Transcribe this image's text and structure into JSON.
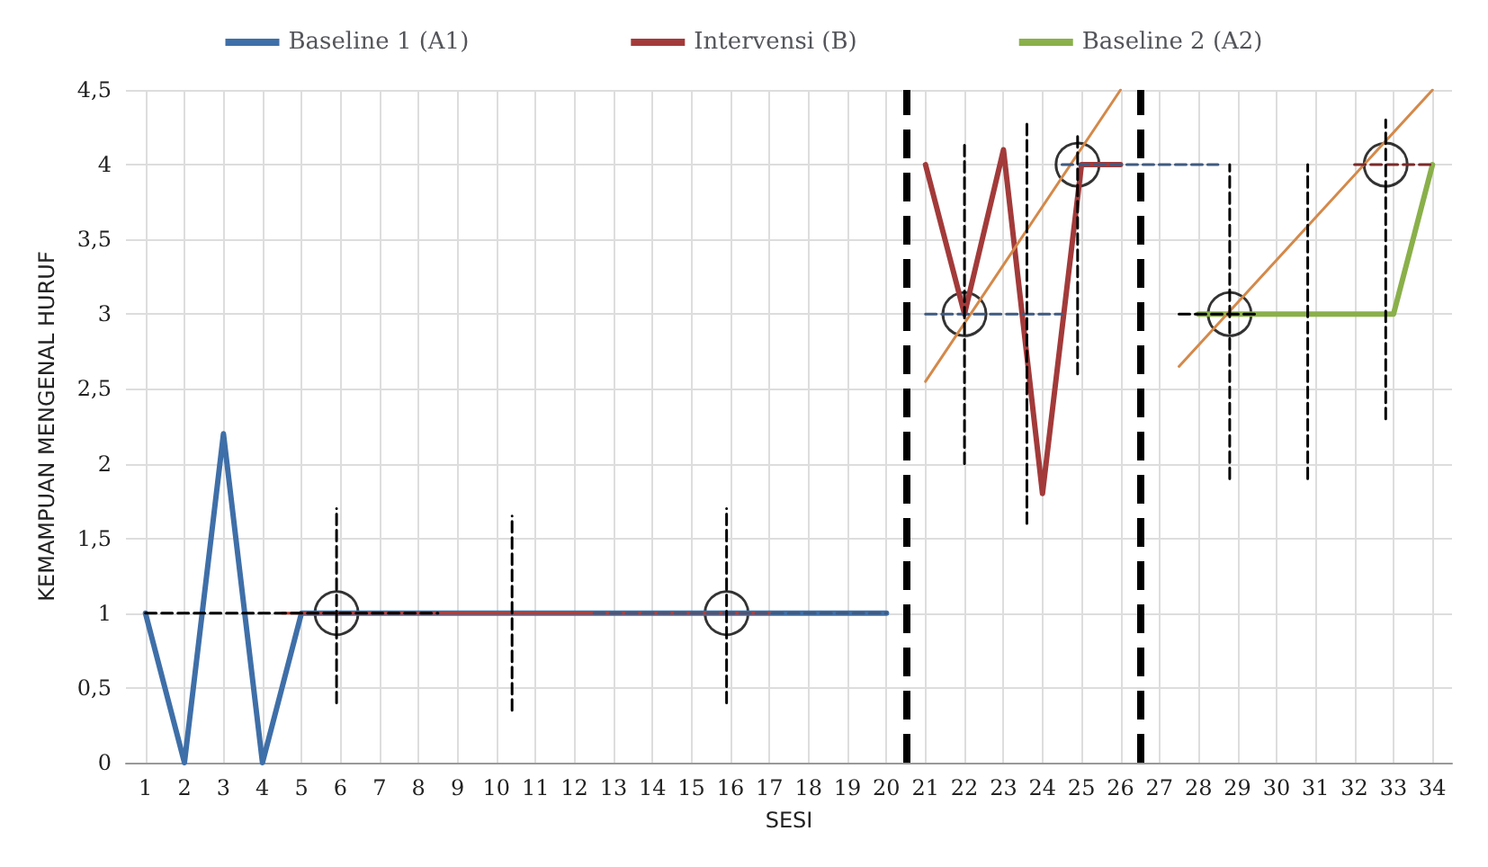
{
  "chart_data": {
    "type": "line",
    "xlabel": "SESI",
    "ylabel": "KEMAMPUAN MENGENAL HURUF",
    "xlim": [
      0.5,
      34.5
    ],
    "xticks": [
      1,
      2,
      3,
      4,
      5,
      6,
      7,
      8,
      9,
      10,
      11,
      12,
      13,
      14,
      15,
      16,
      17,
      18,
      19,
      20,
      21,
      22,
      23,
      24,
      25,
      26,
      27,
      28,
      29,
      30,
      31,
      32,
      33,
      34
    ],
    "ylim": [
      0,
      4.5
    ],
    "yticks": [
      0,
      {
        "value": 0.5,
        "label": "0,5"
      },
      1,
      {
        "value": 1.5,
        "label": "1,5"
      },
      2,
      {
        "value": 2.5,
        "label": "2,5"
      },
      3,
      {
        "value": 3.5,
        "label": "3,5"
      },
      4,
      {
        "value": 4.5,
        "label": "4,5"
      }
    ],
    "grid": true,
    "legend": "top",
    "marker": "none",
    "line_style": "solid",
    "series": [
      {
        "name": "Baseline 1 (A1)",
        "color": "#3f6fa8",
        "x": [
          1,
          2,
          3,
          4,
          5,
          6,
          7,
          8,
          9,
          10,
          11,
          12,
          13,
          14,
          15,
          16,
          17,
          18,
          19,
          20
        ],
        "values": [
          1,
          0,
          2.2,
          0,
          1,
          1,
          1,
          1,
          1,
          1,
          1,
          1,
          1,
          1,
          1,
          1,
          1,
          1,
          1,
          1
        ]
      },
      {
        "name": "Intervensi (B)",
        "color": "#a33a3a",
        "x": [
          21,
          22,
          23,
          24,
          25,
          26
        ],
        "values": [
          4,
          3,
          4.1,
          1.8,
          4,
          4
        ]
      },
      {
        "name": "Baseline 2 (A2)",
        "color": "#8ab04a",
        "x": [
          28,
          29,
          30,
          31,
          32,
          33,
          34
        ],
        "values": [
          3,
          3,
          3,
          3,
          3,
          3,
          4
        ]
      },
      {
        "color": "#c0392b",
        "x": [
          4.5,
          17
        ],
        "values": [
          1,
          1
        ]
      },
      {
        "color": "#d4894a",
        "x": [
          21,
          26
        ],
        "values": [
          2.55,
          4.5
        ]
      },
      {
        "color": "#d4894a",
        "x": [
          27.5,
          34
        ],
        "values": [
          2.65,
          4.5
        ]
      },
      {
        "color": "#000000",
        "line_style": "dashed",
        "x": [
          1,
          8.5
        ],
        "values": [
          1,
          1
        ]
      },
      {
        "color": "#3f5a80",
        "line_style": "dashed",
        "x": [
          12.5,
          20
        ],
        "values": [
          1,
          1
        ]
      },
      {
        "color": "#3f5a80",
        "line_style": "dashed",
        "x": [
          21,
          24.5
        ],
        "values": [
          3,
          3
        ]
      },
      {
        "color": "#3f5a80",
        "line_style": "dashed",
        "x": [
          24.5,
          28.5
        ],
        "values": [
          4,
          4
        ]
      },
      {
        "color": "#000000",
        "line_style": "dashed",
        "x": [
          27.5,
          29.5
        ],
        "values": [
          3,
          3
        ]
      },
      {
        "color": "#7a2a2a",
        "line_style": "dashed",
        "x": [
          32,
          34
        ],
        "values": [
          4,
          4
        ]
      },
      {
        "color": "#000000",
        "line_style": "dashed",
        "x": [
          5.9,
          5.9
        ],
        "values": [
          0.4,
          1.7
        ]
      },
      {
        "color": "#000000",
        "line_style": "dashed",
        "x": [
          10.4,
          10.4
        ],
        "values": [
          0.35,
          1.65
        ]
      },
      {
        "color": "#000000",
        "line_style": "dashed",
        "x": [
          15.9,
          15.9
        ],
        "values": [
          0.4,
          1.7
        ]
      },
      {
        "color": "#000000",
        "line_style": "dashed",
        "x": [
          22,
          22
        ],
        "values": [
          2,
          4.15
        ]
      },
      {
        "color": "#000000",
        "line_style": "dashed",
        "x": [
          23.6,
          23.6
        ],
        "values": [
          1.6,
          4.3
        ]
      },
      {
        "color": "#000000",
        "line_style": "dashed",
        "x": [
          24.9,
          24.9
        ],
        "values": [
          2.6,
          4.2
        ]
      },
      {
        "color": "#000000",
        "line_style": "dashed",
        "x": [
          28.8,
          28.8
        ],
        "values": [
          1.9,
          4
        ]
      },
      {
        "color": "#000000",
        "line_style": "dashed",
        "x": [
          30.8,
          30.8
        ],
        "values": [
          1.9,
          4
        ]
      },
      {
        "color": "#000000",
        "line_style": "dashed",
        "x": [
          32.8,
          32.8
        ],
        "values": [
          2.3,
          4.3
        ]
      },
      {
        "type": "scatter",
        "color": "#000000",
        "marker": "circle",
        "x": [
          5.9,
          15.9,
          22,
          24.9,
          28.8,
          32.8
        ],
        "values": [
          1,
          1,
          3,
          4,
          3,
          4
        ]
      }
    ],
    "ref_lines": [
      {
        "axis": "x",
        "value": 20.5,
        "color": "#000000",
        "line_style": "dashed"
      },
      {
        "axis": "x",
        "value": 26.5,
        "color": "#000000",
        "line_style": "dashed"
      }
    ]
  }
}
